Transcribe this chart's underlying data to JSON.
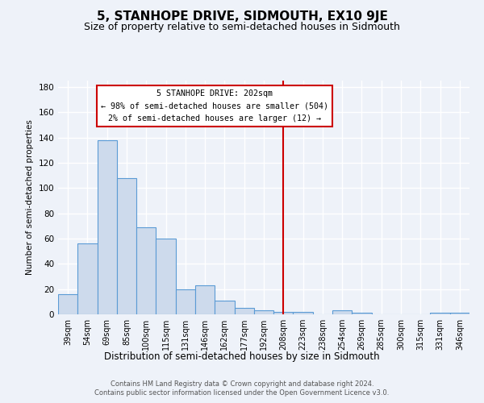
{
  "title": "5, STANHOPE DRIVE, SIDMOUTH, EX10 9JE",
  "subtitle": "Size of property relative to semi-detached houses in Sidmouth",
  "xlabel": "Distribution of semi-detached houses by size in Sidmouth",
  "ylabel": "Number of semi-detached properties",
  "bar_labels": [
    "39sqm",
    "54sqm",
    "69sqm",
    "85sqm",
    "100sqm",
    "115sqm",
    "131sqm",
    "146sqm",
    "162sqm",
    "177sqm",
    "192sqm",
    "208sqm",
    "223sqm",
    "238sqm",
    "254sqm",
    "269sqm",
    "285sqm",
    "300sqm",
    "315sqm",
    "331sqm",
    "346sqm"
  ],
  "bar_heights": [
    16,
    56,
    138,
    108,
    69,
    60,
    20,
    23,
    11,
    5,
    3,
    2,
    2,
    0,
    3,
    1,
    0,
    0,
    0,
    1,
    1
  ],
  "bar_color": "#cddaec",
  "bar_edge_color": "#5b9bd5",
  "ylim": [
    0,
    185
  ],
  "yticks": [
    0,
    20,
    40,
    60,
    80,
    100,
    120,
    140,
    160,
    180
  ],
  "vline_x": 11.0,
  "vline_color": "#cc0000",
  "annotation_title": "5 STANHOPE DRIVE: 202sqm",
  "annotation_line1": "← 98% of semi-detached houses are smaller (504)",
  "annotation_line2": "2% of semi-detached houses are larger (12) →",
  "footer1": "Contains HM Land Registry data © Crown copyright and database right 2024.",
  "footer2": "Contains public sector information licensed under the Open Government Licence v3.0.",
  "background_color": "#eef2f9",
  "plot_bg_color": "#eef2f9",
  "grid_color": "#ffffff",
  "title_fontsize": 11,
  "subtitle_fontsize": 9
}
